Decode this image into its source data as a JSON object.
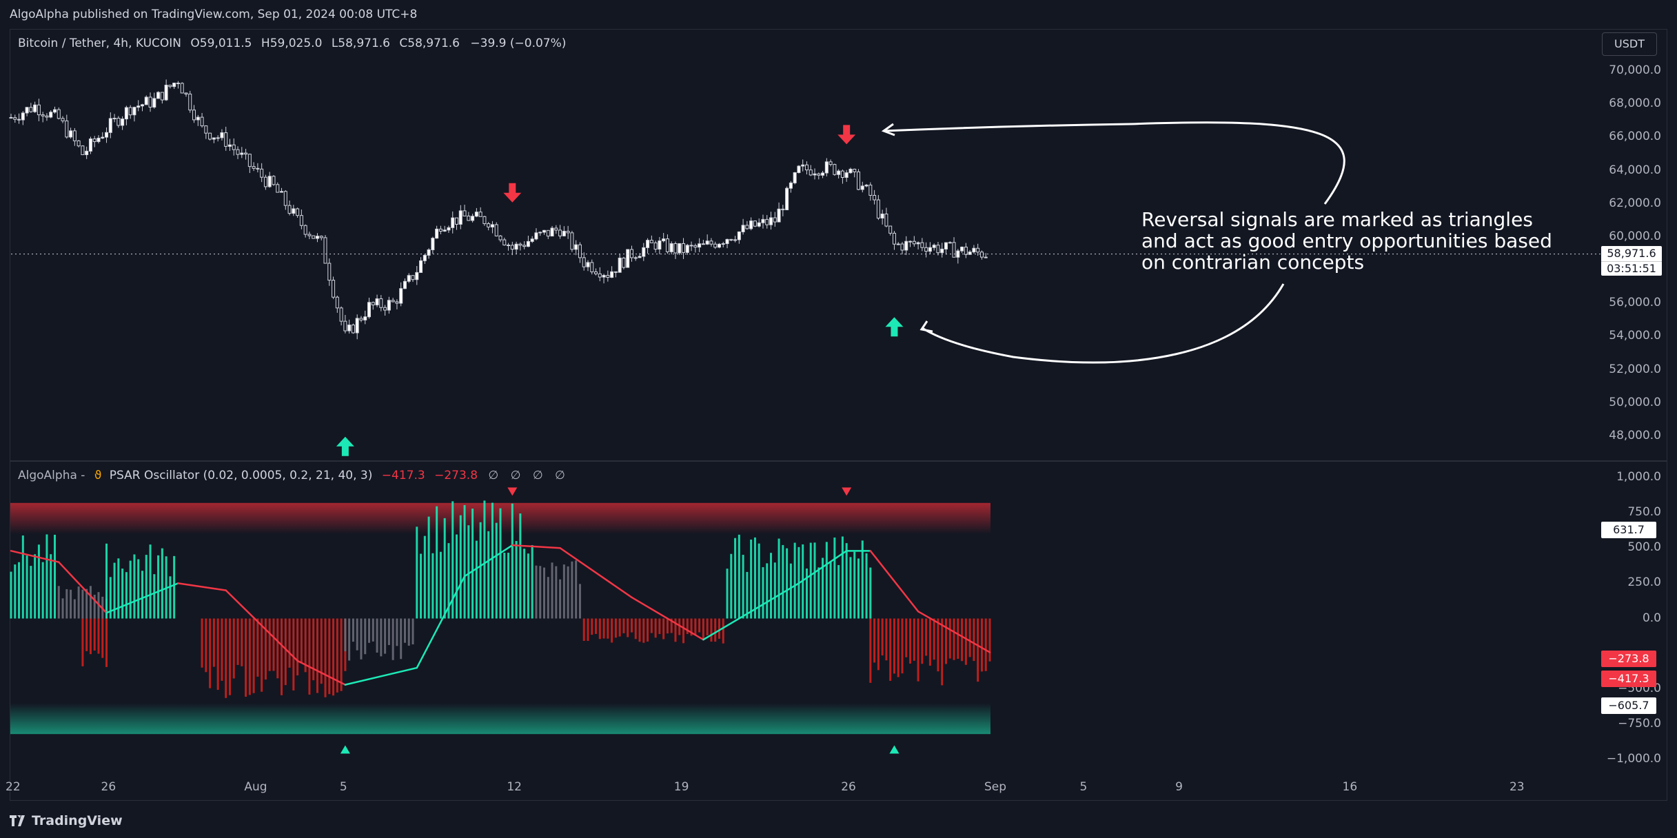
{
  "header": {
    "published": "AlgoAlpha published on TradingView.com, Sep 01, 2024 00:08 UTC+8"
  },
  "main_legend": {
    "symbol": "Bitcoin / Tether, 4h, KUCOIN",
    "open": "O59,011.5",
    "high": "H59,025.0",
    "low": "L58,971.6",
    "close": "C58,971.6",
    "change": "−39.9 (−0.07%)"
  },
  "currency": "USDT",
  "price_axis": [
    "70,000.0",
    "68,000.0",
    "66,000.0",
    "64,000.0",
    "62,000.0",
    "60,000.0",
    "58,000.0",
    "56,000.0",
    "54,000.0",
    "52,000.0",
    "50,000.0",
    "48,000.0"
  ],
  "last_price": {
    "price": "58,971.6",
    "countdown": "03:51:51"
  },
  "indicator": {
    "name": "AlgoAlpha -",
    "title": "PSAR Oscillator (0.02, 0.0005, 0.2, 21, 40, 3)",
    "val1": "−417.3",
    "val2": "−273.8",
    "na": "∅ ∅ ∅ ∅",
    "axis": [
      "1,000.0",
      "750.0",
      "500.0",
      "250.0",
      "0.0",
      "−500.0",
      "−750.0",
      "−1,000.0"
    ],
    "tags": {
      "psar": "631.7",
      "red1": "−273.8",
      "red2": "−417.3",
      "low": "−605.7"
    }
  },
  "time_axis": [
    "22",
    "26",
    "Aug",
    "5",
    "12",
    "19",
    "26",
    "Sep",
    "5",
    "9",
    "16",
    "23"
  ],
  "annotation": "Reversal signals are marked as triangles and act as good entry opportunities based on contrarian concepts",
  "footer": {
    "brand": "TradingView"
  },
  "colors": {
    "bg": "#131722",
    "up": "#1de9b6",
    "down": "#f23645",
    "neutral": "#787b86",
    "candle": "#d1d4dc"
  },
  "chart_data": [
    {
      "type": "candlestick",
      "title": "Bitcoin / Tether, 4h, KUCOIN",
      "ylim": [
        47000,
        70500
      ],
      "x_range": [
        "Jul 22",
        "Sep 1"
      ],
      "close_path": [
        [
          "Jul 22",
          67200
        ],
        [
          "Jul 23",
          67900
        ],
        [
          "Jul 24",
          67100
        ],
        [
          "Jul 25",
          65000
        ],
        [
          "Jul 26",
          66500
        ],
        [
          "Jul 27",
          67800
        ],
        [
          "Jul 28",
          68200
        ],
        [
          "Jul 29",
          69500
        ],
        [
          "Jul 30",
          66500
        ],
        [
          "Jul 31",
          65800
        ],
        [
          "Aug 1",
          64300
        ],
        [
          "Aug 2",
          63000
        ],
        [
          "Aug 3",
          61000
        ],
        [
          "Aug 4",
          59600
        ],
        [
          "Aug 5",
          54000
        ],
        [
          "Aug 6",
          55800
        ],
        [
          "Aug 7",
          56000
        ],
        [
          "Aug 8",
          58000
        ],
        [
          "Aug 9",
          60800
        ],
        [
          "Aug 10",
          61200
        ],
        [
          "Aug 11",
          61000
        ],
        [
          "Aug 12",
          59300
        ],
        [
          "Aug 13",
          60000
        ],
        [
          "Aug 14",
          60500
        ],
        [
          "Aug 15",
          58500
        ],
        [
          "Aug 16",
          57800
        ],
        [
          "Aug 17",
          59000
        ],
        [
          "Aug 18",
          59600
        ],
        [
          "Aug 19",
          59200
        ],
        [
          "Aug 20",
          59400
        ],
        [
          "Aug 21",
          60000
        ],
        [
          "Aug 22",
          60600
        ],
        [
          "Aug 23",
          61000
        ],
        [
          "Aug 24",
          64000
        ],
        [
          "Aug 25",
          64200
        ],
        [
          "Aug 26",
          64000
        ],
        [
          "Aug 27",
          62500
        ],
        [
          "Aug 28",
          59500
        ],
        [
          "Aug 29",
          59600
        ],
        [
          "Aug 30",
          59300
        ],
        [
          "Sep 1",
          58971.6
        ]
      ],
      "signals": [
        {
          "date": "Aug 5",
          "direction": "up",
          "price": 48800
        },
        {
          "date": "Aug 12",
          "direction": "down",
          "price": 62000
        },
        {
          "date": "Aug 26",
          "direction": "down",
          "price": 65500
        },
        {
          "date": "Aug 28",
          "direction": "up",
          "price": 56000
        }
      ]
    },
    {
      "type": "bar",
      "title": "PSAR Oscillator (0.02, 0.0005, 0.2, 21, 40, 3)",
      "ylim": [
        -1000,
        1000
      ],
      "segments": [
        {
          "from": "Jul 22",
          "to": "Jul 24",
          "state": "up",
          "level": 500
        },
        {
          "from": "Jul 24",
          "to": "Jul 26",
          "state": "neutral",
          "level": 200
        },
        {
          "from": "Jul 25",
          "to": "Jul 26",
          "state": "down",
          "level": -300
        },
        {
          "from": "Jul 26",
          "to": "Jul 29",
          "state": "up",
          "level": 450
        },
        {
          "from": "Jul 30",
          "to": "Aug 5",
          "state": "down",
          "level": -480
        },
        {
          "from": "Aug 5",
          "to": "Aug 8",
          "state": "neutral",
          "level": -250
        },
        {
          "from": "Aug 8",
          "to": "Aug 13",
          "state": "up",
          "level": 700
        },
        {
          "from": "Aug 13",
          "to": "Aug 15",
          "state": "neutral",
          "level": 350
        },
        {
          "from": "Aug 15",
          "to": "Aug 21",
          "state": "down",
          "level": -150
        },
        {
          "from": "Aug 21",
          "to": "Aug 27",
          "state": "up",
          "level": 500
        },
        {
          "from": "Aug 27",
          "to": "Sep 1",
          "state": "down",
          "level": -400
        }
      ],
      "signal_line": [
        [
          "Jul 22",
          480
        ],
        [
          "Jul 24",
          400
        ],
        [
          "Jul 26",
          40
        ],
        [
          "Jul 29",
          250
        ],
        [
          "Jul 31",
          200
        ],
        [
          "Aug 3",
          -300
        ],
        [
          "Aug 5",
          -470
        ],
        [
          "Aug 8",
          -350
        ],
        [
          "Aug 10",
          300
        ],
        [
          "Aug 12",
          520
        ],
        [
          "Aug 14",
          500
        ],
        [
          "Aug 17",
          150
        ],
        [
          "Aug 20",
          -150
        ],
        [
          "Aug 22",
          50
        ],
        [
          "Aug 24",
          250
        ],
        [
          "Aug 26",
          480
        ],
        [
          "Aug 27",
          480
        ],
        [
          "Aug 29",
          50
        ],
        [
          "Sep 1",
          -240
        ]
      ],
      "signals": [
        {
          "date": "Aug 5",
          "direction": "up"
        },
        {
          "date": "Aug 12",
          "direction": "down"
        },
        {
          "date": "Aug 26",
          "direction": "down"
        },
        {
          "date": "Aug 28",
          "direction": "up"
        }
      ]
    }
  ]
}
